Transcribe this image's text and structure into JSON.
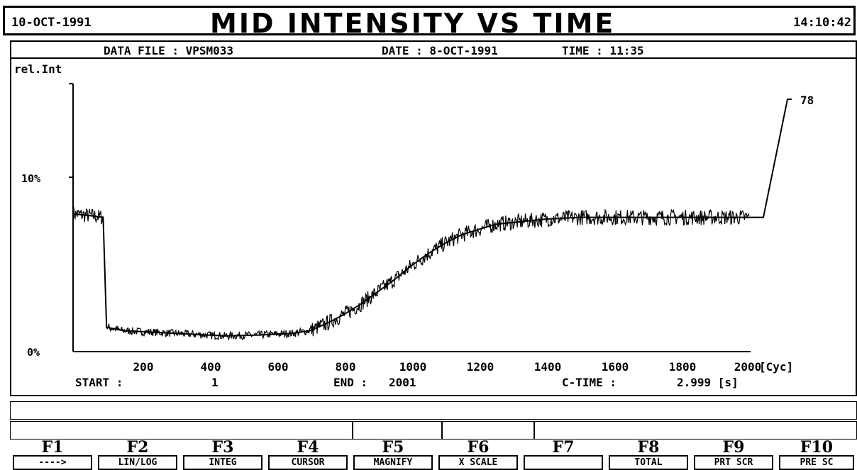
{
  "header": {
    "date": "10-OCT-1991",
    "title": "MID INTENSITY VS TIME",
    "time": "14:10:42"
  },
  "info": {
    "data_file": "DATA FILE : VPSM033",
    "date": "DATE : 8-OCT-1991",
    "time": "TIME : 11:35"
  },
  "chart_data": {
    "type": "line",
    "ylabel": "rel.Int",
    "y_ticks": [
      "10%",
      "0%"
    ],
    "x_ticks": [
      "200",
      "400",
      "600",
      "800",
      "1000",
      "1200",
      "1400",
      "1600",
      "1800",
      "2000"
    ],
    "x_unit": "[Cyc]",
    "xlim": [
      1,
      2001
    ],
    "ylim_percent": [
      0,
      15.5
    ],
    "marker_value": "78",
    "series": [
      {
        "x": [
          1,
          50,
          90,
          100,
          150,
          250,
          350,
          450,
          550,
          650,
          700,
          750,
          800,
          850,
          900,
          950,
          1000,
          1050,
          1100,
          1150,
          1200,
          1250,
          1300,
          1350,
          1400,
          1500,
          1600,
          1700,
          1800,
          1900,
          2001
        ],
        "y": [
          7.9,
          7.8,
          7.7,
          1.4,
          1.2,
          1.1,
          1.0,
          0.9,
          0.95,
          1.05,
          1.2,
          1.6,
          2.1,
          2.7,
          3.4,
          4.1,
          4.9,
          5.6,
          6.2,
          6.7,
          7.0,
          7.3,
          7.4,
          7.5,
          7.6,
          7.7,
          7.7,
          7.7,
          7.7,
          7.7,
          7.7
        ]
      }
    ]
  },
  "summary": {
    "start_label": "START :",
    "start_value": "1",
    "end_label": "END :",
    "end_value": "2001",
    "ctime_label": "C-TIME :",
    "ctime_value": "2.999 [s]"
  },
  "fkeys": [
    {
      "key": "F1",
      "label": "---->"
    },
    {
      "key": "F2",
      "label": "LIN/LOG"
    },
    {
      "key": "F3",
      "label": "INTEG"
    },
    {
      "key": "F4",
      "label": "CURSOR"
    },
    {
      "key": "F5",
      "label": "MAGNIFY"
    },
    {
      "key": "F6",
      "label": "X SCALE"
    },
    {
      "key": "F7",
      "label": ""
    },
    {
      "key": "F8",
      "label": "TOTAL"
    },
    {
      "key": "F9",
      "label": "PRT SCR"
    },
    {
      "key": "F10",
      "label": "PRE SC"
    }
  ]
}
